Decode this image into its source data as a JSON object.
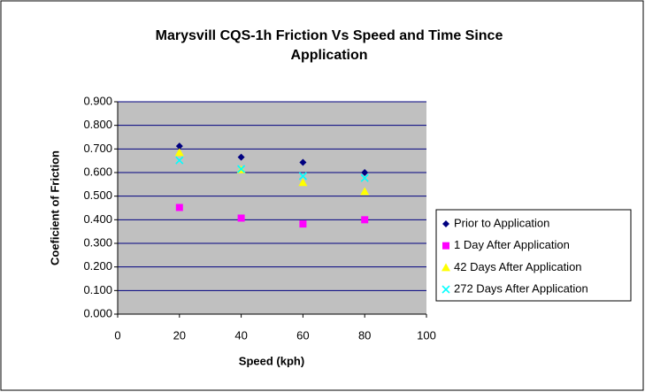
{
  "chart_data": {
    "type": "scatter",
    "title": [
      "Marysvill CQS-1h Friction Vs Speed and Time Since",
      "Application"
    ],
    "x_label": "Speed (kph)",
    "y_label": "Coeficient of Friction",
    "xlim": [
      0,
      100
    ],
    "xticks": [
      0,
      20,
      40,
      60,
      80,
      100
    ],
    "ylim": [
      0,
      0.9
    ],
    "yticks": [
      {
        "value": 0,
        "label": "0.000"
      },
      {
        "value": 0.1,
        "label": "0.100"
      },
      {
        "value": 0.2,
        "label": "0.200"
      },
      {
        "value": 0.3,
        "label": "0.300"
      },
      {
        "value": 0.4,
        "label": "0.400"
      },
      {
        "value": 0.5,
        "label": "0.500"
      },
      {
        "value": 0.6,
        "label": "0.600"
      },
      {
        "value": 0.7,
        "label": "0.700"
      },
      {
        "value": 0.8,
        "label": "0.800"
      },
      {
        "value": 0.9,
        "label": "0.900"
      }
    ],
    "grid": true,
    "legend": "right",
    "x": [
      20,
      40,
      60,
      80
    ],
    "series": [
      {
        "name": "Prior to Application",
        "color": "#000080",
        "marker": "diamond",
        "values": [
          0.712,
          0.665,
          0.643,
          0.6
        ]
      },
      {
        "name": "1 Day After Application",
        "color": "#ff00ff",
        "marker": "square",
        "values": [
          0.452,
          0.407,
          0.382,
          0.4
        ]
      },
      {
        "name": "42 Days After Application",
        "color": "#ffff00",
        "marker": "triangle",
        "values": [
          0.685,
          0.612,
          0.558,
          0.52
        ]
      },
      {
        "name": "272 Days After Application",
        "color": "#00ffff",
        "marker": "x",
        "values": [
          0.652,
          0.615,
          0.585,
          0.577
        ]
      }
    ]
  }
}
